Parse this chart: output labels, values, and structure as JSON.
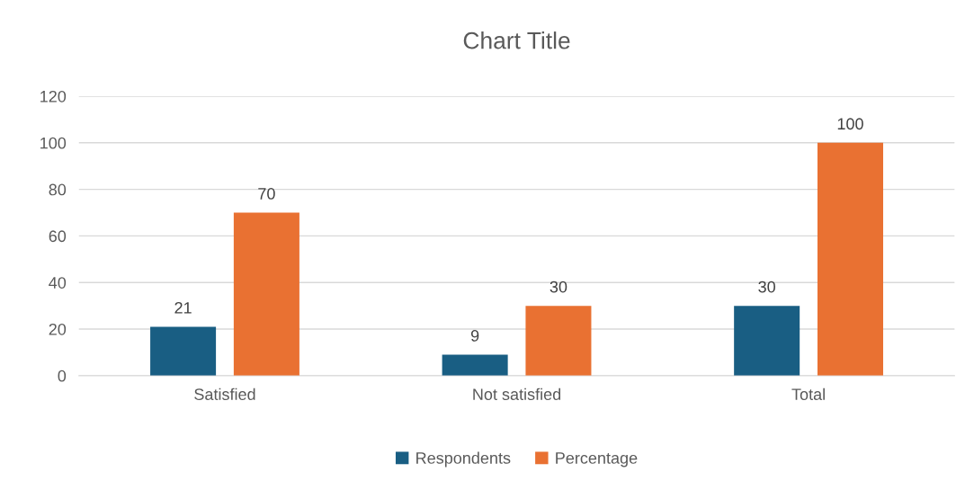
{
  "chart_data": {
    "type": "bar",
    "title": "Chart Title",
    "categories": [
      "Satisfied",
      "Not satisfied",
      "Total"
    ],
    "series": [
      {
        "name": "Respondents",
        "color": "#195e83",
        "values": [
          21,
          9,
          30
        ]
      },
      {
        "name": "Percentage",
        "color": "#e97132",
        "values": [
          70,
          30,
          100
        ]
      }
    ],
    "ylim": [
      0,
      120
    ],
    "yticks": [
      0,
      20,
      40,
      60,
      80,
      100,
      120
    ],
    "grid": "y",
    "legend": "bottom",
    "data_labels": true
  }
}
